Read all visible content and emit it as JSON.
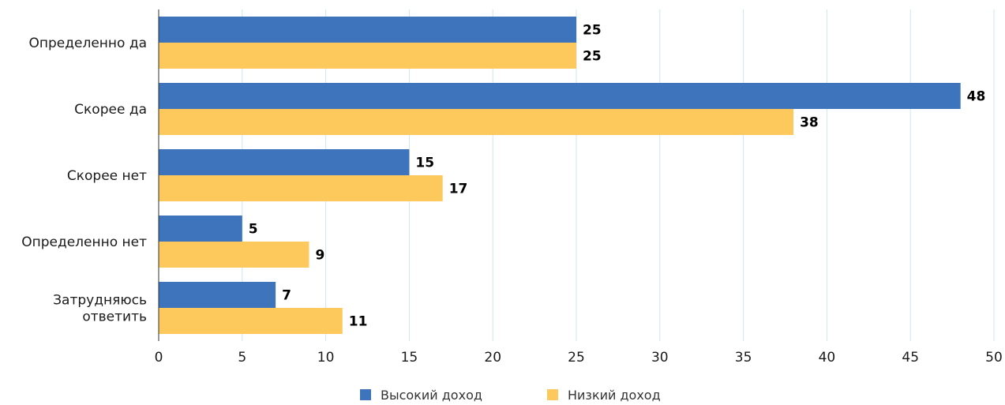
{
  "chart_data": {
    "type": "bar",
    "orientation": "horizontal",
    "categories": [
      [
        "Определенно да"
      ],
      [
        "Скорее да"
      ],
      [
        "Скорее нет"
      ],
      [
        "Определенно нет"
      ],
      [
        "Затрудняюсь",
        "ответить"
      ]
    ],
    "series": [
      {
        "name": "Высокий доход",
        "color": "#3d74bb",
        "values": [
          25,
          48,
          15,
          5,
          7
        ]
      },
      {
        "name": "Низкий доход",
        "color": "#fdc85c",
        "values": [
          25,
          38,
          17,
          9,
          11
        ]
      }
    ],
    "title": "",
    "xlabel": "",
    "ylabel": "",
    "xlim": [
      0,
      50
    ],
    "xticks": [
      0,
      5,
      10,
      15,
      20,
      25,
      30,
      35,
      40,
      45,
      50
    ],
    "grid": "vertical",
    "gridColor": "#cde7ef",
    "legend": "bottom-center",
    "data_labels": true
  }
}
